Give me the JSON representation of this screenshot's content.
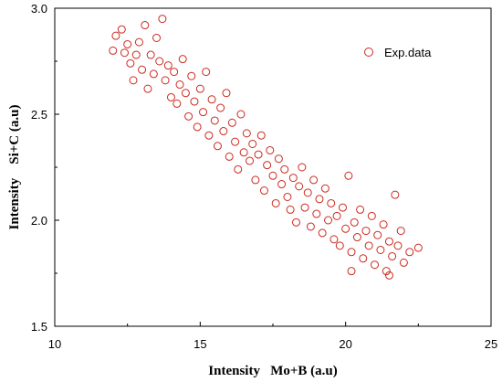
{
  "chart_data": {
    "type": "scatter",
    "title": "",
    "xlabel": "Intensity   Mo+B (a.u)",
    "ylabel": "Intensity    Si+C (a.u)",
    "xlim": [
      10,
      25
    ],
    "ylim": [
      1.5,
      3.0
    ],
    "x_ticks": [
      "10",
      "15",
      "20",
      "25"
    ],
    "y_ticks": [
      "1.5",
      "2.0",
      "2.5",
      "3.0"
    ],
    "grid": false,
    "legend": "top-right",
    "marker_color": "#cc2a1f",
    "series": [
      {
        "name": "Exp.data",
        "points": [
          [
            12.0,
            2.8
          ],
          [
            12.1,
            2.87
          ],
          [
            12.3,
            2.9
          ],
          [
            12.4,
            2.79
          ],
          [
            12.5,
            2.83
          ],
          [
            12.6,
            2.74
          ],
          [
            12.7,
            2.66
          ],
          [
            12.8,
            2.78
          ],
          [
            12.9,
            2.84
          ],
          [
            13.0,
            2.71
          ],
          [
            13.1,
            2.92
          ],
          [
            13.2,
            2.62
          ],
          [
            13.3,
            2.78
          ],
          [
            13.4,
            2.69
          ],
          [
            13.5,
            2.86
          ],
          [
            13.6,
            2.75
          ],
          [
            13.7,
            2.95
          ],
          [
            13.8,
            2.66
          ],
          [
            13.9,
            2.73
          ],
          [
            14.0,
            2.58
          ],
          [
            14.1,
            2.7
          ],
          [
            14.2,
            2.55
          ],
          [
            14.3,
            2.64
          ],
          [
            14.4,
            2.76
          ],
          [
            14.5,
            2.6
          ],
          [
            14.6,
            2.49
          ],
          [
            14.7,
            2.68
          ],
          [
            14.8,
            2.56
          ],
          [
            14.9,
            2.44
          ],
          [
            15.0,
            2.62
          ],
          [
            15.1,
            2.51
          ],
          [
            15.2,
            2.7
          ],
          [
            15.3,
            2.4
          ],
          [
            15.4,
            2.57
          ],
          [
            15.5,
            2.47
          ],
          [
            15.6,
            2.35
          ],
          [
            15.7,
            2.53
          ],
          [
            15.8,
            2.42
          ],
          [
            15.9,
            2.6
          ],
          [
            16.0,
            2.3
          ],
          [
            16.1,
            2.46
          ],
          [
            16.2,
            2.37
          ],
          [
            16.3,
            2.24
          ],
          [
            16.4,
            2.5
          ],
          [
            16.5,
            2.32
          ],
          [
            16.6,
            2.41
          ],
          [
            16.7,
            2.28
          ],
          [
            16.8,
            2.36
          ],
          [
            16.9,
            2.19
          ],
          [
            17.0,
            2.31
          ],
          [
            17.1,
            2.4
          ],
          [
            17.2,
            2.14
          ],
          [
            17.3,
            2.26
          ],
          [
            17.4,
            2.33
          ],
          [
            17.5,
            2.21
          ],
          [
            17.6,
            2.08
          ],
          [
            17.7,
            2.29
          ],
          [
            17.8,
            2.17
          ],
          [
            17.9,
            2.24
          ],
          [
            18.0,
            2.11
          ],
          [
            18.1,
            2.05
          ],
          [
            18.2,
            2.2
          ],
          [
            18.3,
            1.99
          ],
          [
            18.4,
            2.16
          ],
          [
            18.5,
            2.25
          ],
          [
            18.6,
            2.06
          ],
          [
            18.7,
            2.13
          ],
          [
            18.8,
            1.97
          ],
          [
            18.9,
            2.19
          ],
          [
            19.0,
            2.03
          ],
          [
            19.1,
            2.1
          ],
          [
            19.2,
            1.94
          ],
          [
            19.3,
            2.15
          ],
          [
            19.4,
            2.0
          ],
          [
            19.5,
            2.08
          ],
          [
            19.6,
            1.91
          ],
          [
            19.7,
            2.02
          ],
          [
            19.8,
            1.88
          ],
          [
            19.9,
            2.06
          ],
          [
            20.0,
            1.96
          ],
          [
            20.1,
            2.21
          ],
          [
            20.2,
            1.85
          ],
          [
            20.3,
            1.99
          ],
          [
            20.4,
            1.92
          ],
          [
            20.5,
            2.05
          ],
          [
            20.6,
            1.82
          ],
          [
            20.7,
            1.95
          ],
          [
            20.8,
            1.88
          ],
          [
            20.9,
            2.02
          ],
          [
            21.0,
            1.79
          ],
          [
            21.1,
            1.93
          ],
          [
            21.2,
            1.86
          ],
          [
            21.3,
            1.98
          ],
          [
            21.4,
            1.76
          ],
          [
            21.5,
            1.9
          ],
          [
            21.6,
            1.83
          ],
          [
            21.7,
            2.12
          ],
          [
            21.8,
            1.88
          ],
          [
            21.9,
            1.95
          ],
          [
            22.0,
            1.8
          ],
          [
            22.2,
            1.85
          ],
          [
            22.5,
            1.87
          ],
          [
            20.2,
            1.76
          ],
          [
            21.5,
            1.74
          ]
        ]
      }
    ]
  }
}
